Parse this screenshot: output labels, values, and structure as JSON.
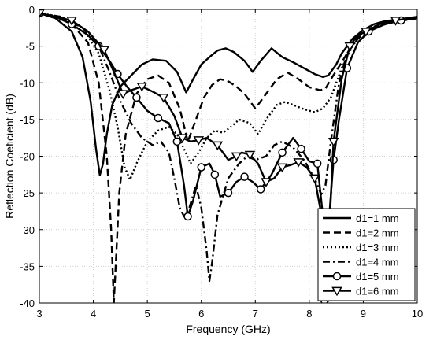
{
  "chart_data": {
    "type": "line",
    "title": "",
    "xlabel": "Frequency (GHz)",
    "ylabel": "Reflection Coeficient (dB)",
    "xlim": [
      3,
      10
    ],
    "ylim": [
      -40,
      0
    ],
    "xticks": [
      3,
      4,
      5,
      6,
      7,
      8,
      9,
      10
    ],
    "yticks": [
      0,
      -5,
      -10,
      -15,
      -20,
      -25,
      -30,
      -35,
      -40
    ],
    "grid": true,
    "legend_position": "lower-right",
    "series": [
      {
        "name": "d1=1 mm",
        "line_style": "solid",
        "marker": "none",
        "color": "#000000",
        "x": [
          3.0,
          3.3,
          3.6,
          3.8,
          3.95,
          4.05,
          4.12,
          4.18,
          4.25,
          4.35,
          4.5,
          4.7,
          4.9,
          5.1,
          5.35,
          5.55,
          5.72,
          5.85,
          6.0,
          6.15,
          6.3,
          6.45,
          6.6,
          6.8,
          6.95,
          7.1,
          7.3,
          7.5,
          7.7,
          7.9,
          8.1,
          8.25,
          8.35,
          8.5,
          8.6,
          8.7,
          8.8,
          9.0,
          9.2,
          9.4,
          9.6,
          9.8,
          10.0
        ],
        "y": [
          -0.5,
          -1.2,
          -3.0,
          -6.5,
          -12.5,
          -19.0,
          -22.6,
          -21.0,
          -17.0,
          -13.0,
          -10.5,
          -9.0,
          -7.5,
          -6.8,
          -7.0,
          -8.5,
          -11.3,
          -9.5,
          -7.5,
          -6.5,
          -5.6,
          -5.3,
          -5.8,
          -7.0,
          -8.5,
          -7.0,
          -5.3,
          -6.5,
          -7.2,
          -8.0,
          -8.8,
          -9.2,
          -9.0,
          -7.5,
          -6.0,
          -5.0,
          -4.0,
          -2.8,
          -2.0,
          -1.6,
          -1.4,
          -1.2,
          -1.0
        ]
      },
      {
        "name": "d1=2 mm",
        "line_style": "dashed",
        "marker": "none",
        "color": "#000000",
        "x": [
          3.0,
          3.3,
          3.6,
          3.9,
          4.1,
          4.25,
          4.33,
          4.38,
          4.42,
          4.48,
          4.6,
          4.8,
          5.0,
          5.2,
          5.4,
          5.6,
          5.75,
          5.9,
          6.05,
          6.2,
          6.35,
          6.5,
          6.65,
          6.8,
          7.0,
          7.2,
          7.4,
          7.6,
          7.8,
          8.0,
          8.2,
          8.3,
          8.4,
          8.55,
          8.7,
          8.9,
          9.1,
          9.4,
          9.7,
          10.0
        ],
        "y": [
          -0.5,
          -1.0,
          -2.0,
          -4.5,
          -10.0,
          -20.0,
          -30.0,
          -40.0,
          -34.0,
          -25.0,
          -17.0,
          -11.5,
          -9.5,
          -9.0,
          -10.0,
          -13.5,
          -18.0,
          -15.0,
          -12.0,
          -10.3,
          -9.5,
          -9.8,
          -10.5,
          -11.5,
          -13.5,
          -11.5,
          -9.5,
          -8.6,
          -9.5,
          -10.6,
          -11.0,
          -10.8,
          -9.5,
          -7.8,
          -6.0,
          -4.0,
          -2.8,
          -2.0,
          -1.4,
          -1.0
        ]
      },
      {
        "name": "d1=3 mm",
        "line_style": "dotted",
        "marker": "none",
        "color": "#000000",
        "x": [
          3.0,
          3.4,
          3.8,
          4.1,
          4.3,
          4.45,
          4.58,
          4.68,
          4.8,
          5.0,
          5.2,
          5.4,
          5.55,
          5.68,
          5.8,
          5.95,
          6.1,
          6.25,
          6.4,
          6.55,
          6.7,
          6.9,
          7.05,
          7.2,
          7.4,
          7.55,
          7.7,
          7.9,
          8.1,
          8.25,
          8.4,
          8.6,
          8.8,
          9.0,
          9.3,
          9.6,
          10.0
        ],
        "y": [
          -0.5,
          -1.0,
          -2.5,
          -6.0,
          -11.0,
          -16.0,
          -21.5,
          -23.2,
          -21.0,
          -18.0,
          -16.5,
          -16.0,
          -17.0,
          -19.0,
          -21.0,
          -19.5,
          -17.5,
          -16.5,
          -16.8,
          -16.0,
          -15.0,
          -15.5,
          -17.0,
          -15.0,
          -13.0,
          -12.6,
          -13.0,
          -13.6,
          -14.0,
          -13.5,
          -12.0,
          -8.0,
          -5.0,
          -3.0,
          -2.0,
          -1.5,
          -1.0
        ]
      },
      {
        "name": "d1=4 mm",
        "line_style": "dashdot",
        "marker": "none",
        "color": "#000000",
        "x": [
          3.0,
          3.4,
          3.8,
          4.1,
          4.3,
          4.5,
          4.7,
          4.9,
          5.1,
          5.25,
          5.4,
          5.5,
          5.6,
          5.68,
          5.78,
          5.9,
          6.0,
          6.1,
          6.15,
          6.2,
          6.3,
          6.5,
          6.7,
          6.85,
          7.0,
          7.2,
          7.35,
          7.5,
          7.7,
          7.9,
          8.1,
          8.22,
          8.3,
          8.4,
          8.55,
          8.7,
          8.9,
          9.2,
          9.5,
          10.0
        ],
        "y": [
          -0.5,
          -1.0,
          -2.5,
          -5.0,
          -8.5,
          -12.5,
          -15.5,
          -17.5,
          -18.5,
          -18.0,
          -19.5,
          -23.0,
          -27.0,
          -28.2,
          -27.0,
          -24.0,
          -27.0,
          -33.0,
          -37.0,
          -34.5,
          -28.0,
          -23.0,
          -21.0,
          -20.0,
          -20.5,
          -20.0,
          -18.5,
          -18.0,
          -18.8,
          -20.5,
          -23.0,
          -25.2,
          -24.0,
          -18.0,
          -10.0,
          -6.0,
          -3.8,
          -2.5,
          -1.8,
          -1.2
        ]
      },
      {
        "name": "d1=5 mm",
        "line_style": "solid",
        "marker": "circle",
        "color": "#000000",
        "x": [
          3.0,
          3.3,
          3.6,
          3.9,
          4.1,
          4.3,
          4.45,
          4.62,
          4.8,
          5.0,
          5.2,
          5.4,
          5.55,
          5.68,
          5.75,
          5.85,
          6.0,
          6.15,
          6.25,
          6.35,
          6.5,
          6.65,
          6.8,
          6.95,
          7.1,
          7.3,
          7.5,
          7.7,
          7.85,
          8.0,
          8.15,
          8.25,
          8.3,
          8.35,
          8.45,
          8.55,
          8.7,
          8.9,
          9.1,
          9.4,
          9.7,
          10.0
        ],
        "y": [
          -0.5,
          -1.0,
          -2.0,
          -3.5,
          -5.0,
          -7.0,
          -8.8,
          -10.5,
          -12.0,
          -13.8,
          -14.8,
          -15.5,
          -18.0,
          -24.0,
          -28.2,
          -26.0,
          -21.5,
          -21.0,
          -22.5,
          -25.5,
          -25.0,
          -23.5,
          -22.8,
          -23.5,
          -24.5,
          -22.5,
          -19.5,
          -17.5,
          -19.0,
          -20.7,
          -21.0,
          -28.0,
          -39.5,
          -30.0,
          -20.5,
          -15.0,
          -8.0,
          -4.5,
          -3.0,
          -2.0,
          -1.5,
          -1.2
        ]
      },
      {
        "name": "d1=6 mm",
        "line_style": "solid",
        "marker": "triangle-down",
        "color": "#000000",
        "x": [
          3.0,
          3.3,
          3.6,
          3.9,
          4.2,
          4.38,
          4.55,
          4.7,
          4.9,
          5.1,
          5.3,
          5.5,
          5.65,
          5.8,
          5.95,
          6.1,
          6.3,
          6.5,
          6.65,
          6.75,
          6.9,
          7.05,
          7.2,
          7.35,
          7.5,
          7.65,
          7.8,
          7.95,
          8.1,
          8.2,
          8.28,
          8.35,
          8.45,
          8.6,
          8.75,
          8.9,
          9.05,
          9.3,
          9.6,
          10.0
        ],
        "y": [
          -0.5,
          -1.0,
          -1.5,
          -3.0,
          -5.5,
          -8.5,
          -11.5,
          -11.0,
          -10.5,
          -11.2,
          -12.0,
          -14.5,
          -17.5,
          -18.0,
          -17.8,
          -17.5,
          -18.5,
          -20.5,
          -20.0,
          -19.5,
          -19.8,
          -21.0,
          -23.5,
          -23.0,
          -21.5,
          -21.2,
          -20.8,
          -21.5,
          -23.0,
          -27.0,
          -40.0,
          -33.0,
          -18.0,
          -9.5,
          -5.0,
          -3.5,
          -3.0,
          -2.0,
          -1.5,
          -1.0
        ]
      }
    ]
  }
}
